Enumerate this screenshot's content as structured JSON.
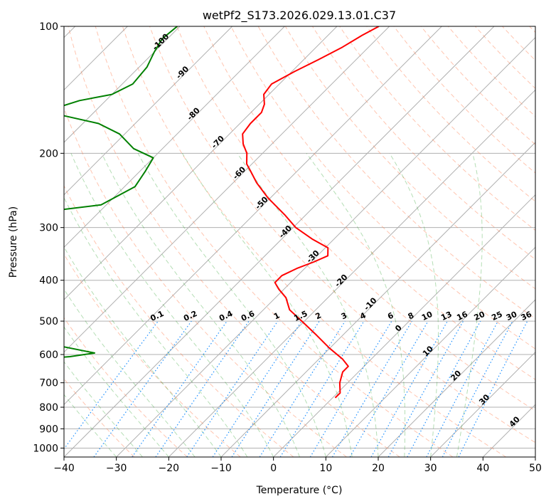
{
  "chart_data": {
    "type": "line",
    "title": "wetPf2_S173.2026.029.13.01.C37",
    "xlabel": "Temperature (°C)",
    "ylabel": "Pressure (hPa)",
    "xlim": [
      -40,
      50
    ],
    "ylim": [
      1050,
      100
    ],
    "y_scale": "log",
    "grid": true,
    "x_ticks": [
      -40,
      -30,
      -20,
      -10,
      0,
      10,
      20,
      30,
      40,
      50
    ],
    "y_ticks": [
      100,
      200,
      300,
      400,
      500,
      600,
      700,
      800,
      900,
      1000
    ],
    "colors": {
      "temperature": "#ff0000",
      "dewpoint": "#008000",
      "dry_adiabat": "#d2b48c",
      "moist_adiabat": "#2ca02c",
      "isotherm_annot": "#1f77b4",
      "mixing_ratio": "#1e90ff",
      "dry_annot": "#d62728",
      "zero_annot": "#808080"
    },
    "series": [
      {
        "role": "temperature",
        "points": [
          {
            "p": 100,
            "t": -62.0
          },
          {
            "p": 105,
            "t": -63.5
          },
          {
            "p": 112,
            "t": -65.0
          },
          {
            "p": 120,
            "t": -67.2
          },
          {
            "p": 128,
            "t": -69.5
          },
          {
            "p": 137,
            "t": -71.5
          },
          {
            "p": 145,
            "t": -71.0
          },
          {
            "p": 153,
            "t": -69.0
          },
          {
            "p": 160,
            "t": -68.0
          },
          {
            "p": 170,
            "t": -68.0
          },
          {
            "p": 180,
            "t": -67.5
          },
          {
            "p": 190,
            "t": -65.5
          },
          {
            "p": 200,
            "t": -63.0
          },
          {
            "p": 212,
            "t": -61.0
          },
          {
            "p": 220,
            "t": -59.0
          },
          {
            "p": 235,
            "t": -55.5
          },
          {
            "p": 255,
            "t": -50.5
          },
          {
            "p": 280,
            "t": -44.0
          },
          {
            "p": 300,
            "t": -39.5
          },
          {
            "p": 320,
            "t": -34.0
          },
          {
            "p": 335,
            "t": -29.5
          },
          {
            "p": 350,
            "t": -28.0
          },
          {
            "p": 362,
            "t": -29.5
          },
          {
            "p": 375,
            "t": -31.5
          },
          {
            "p": 390,
            "t": -33.0
          },
          {
            "p": 405,
            "t": -33.0
          },
          {
            "p": 420,
            "t": -31.0
          },
          {
            "p": 440,
            "t": -28.0
          },
          {
            "p": 470,
            "t": -25.0
          },
          {
            "p": 500,
            "t": -20.5
          },
          {
            "p": 540,
            "t": -15.0
          },
          {
            "p": 580,
            "t": -10.0
          },
          {
            "p": 615,
            "t": -5.5
          },
          {
            "p": 640,
            "t": -3.0
          },
          {
            "p": 660,
            "t": -3.0
          },
          {
            "p": 700,
            "t": -1.5
          },
          {
            "p": 740,
            "t": 0.5
          },
          {
            "p": 760,
            "t": 0.5
          }
        ]
      },
      {
        "role": "dewpoint",
        "points": [
          {
            "p": 100,
            "t": -100.5
          },
          {
            "p": 107,
            "t": -101.0
          },
          {
            "p": 115,
            "t": -100.0
          },
          {
            "p": 125,
            "t": -98.5
          },
          {
            "p": 137,
            "t": -98.0
          },
          {
            "p": 145,
            "t": -100.0
          },
          {
            "p": 150,
            "t": -105.0
          },
          {
            "p": 157,
            "t": -108.5
          },
          {
            "p": 163,
            "t": -105.0
          },
          {
            "p": 170,
            "t": -97.0
          },
          {
            "p": 180,
            "t": -91.0
          },
          {
            "p": 195,
            "t": -85.5
          },
          {
            "p": 205,
            "t": -80.0
          },
          {
            "p": 220,
            "t": -79.0
          },
          {
            "p": 240,
            "t": -78.0
          },
          {
            "p": 265,
            "t": -81.0
          },
          {
            "p": 278,
            "t": -93.0
          },
          {
            "p": 282,
            "t": -108.0
          },
          {
            "p": 300,
            "t": -109.0
          },
          {
            "p": 320,
            "t": -111.0
          },
          {
            "p": 345,
            "t": -112.5
          },
          {
            "p": 365,
            "t": -113.5
          },
          {
            "p": 375,
            "t": -114.0
          },
          {
            "p": 380,
            "t": -106.0
          },
          {
            "p": 385,
            "t": -101.0
          },
          {
            "p": 390,
            "t": -104.0
          },
          {
            "p": 395,
            "t": -112.0
          },
          {
            "p": 405,
            "t": -114.0
          },
          {
            "p": 430,
            "t": -114.5
          },
          {
            "p": 440,
            "t": -90.0
          },
          {
            "p": 455,
            "t": -70.5
          },
          {
            "p": 470,
            "t": -69.5
          },
          {
            "p": 485,
            "t": -72.0
          },
          {
            "p": 500,
            "t": -75.0
          },
          {
            "p": 515,
            "t": -76.0
          },
          {
            "p": 540,
            "t": -70.0
          },
          {
            "p": 570,
            "t": -63.0
          },
          {
            "p": 595,
            "t": -54.0
          },
          {
            "p": 607,
            "t": -58.0
          },
          {
            "p": 625,
            "t": -72.0
          },
          {
            "p": 632,
            "t": -110.0
          },
          {
            "p": 650,
            "t": -117.0
          },
          {
            "p": 660,
            "t": -108.0
          },
          {
            "p": 672,
            "t": -104.0
          },
          {
            "p": 678,
            "t": -109.0
          },
          {
            "p": 690,
            "t": -104.0
          },
          {
            "p": 700,
            "t": -96.0
          },
          {
            "p": 710,
            "t": -104.0
          },
          {
            "p": 720,
            "t": -116.0
          }
        ]
      }
    ],
    "dry_adiabats_theta_c": [
      -30,
      -20,
      -10,
      0,
      10,
      20,
      30,
      40,
      50,
      60,
      70,
      80,
      90,
      100,
      110,
      120,
      130,
      140,
      150,
      160,
      170,
      180,
      190,
      200
    ],
    "moist_adiabats_t_c": [
      -30,
      -25,
      -20,
      -15,
      -10,
      -5,
      0,
      5,
      10,
      15,
      20,
      25,
      30,
      35
    ],
    "mixing_ratios_gkg": [
      0.1,
      0.2,
      0.4,
      0.6,
      1,
      1.5,
      2,
      3,
      4,
      6,
      8,
      10,
      13,
      16,
      20,
      25,
      30,
      36
    ],
    "mixing_ratio_labels": [
      "0.1",
      "0.2",
      "0.4",
      "0.6",
      "1",
      "1.5",
      "2",
      "3",
      "4",
      "6",
      "8",
      "10",
      "13",
      "16",
      "20",
      "25",
      "30",
      "36"
    ],
    "isotherm_labels": [
      {
        "text": "-100",
        "t": -100,
        "p": 110
      },
      {
        "text": "-90",
        "t": -90,
        "p": 130
      },
      {
        "text": "-80",
        "t": -80,
        "p": 163
      },
      {
        "text": "-70",
        "t": -70,
        "p": 190
      },
      {
        "text": "-60",
        "t": -60,
        "p": 225
      },
      {
        "text": "-50",
        "t": -50,
        "p": 265
      },
      {
        "text": "-40",
        "t": -40,
        "p": 310
      },
      {
        "text": "-30",
        "t": -30,
        "p": 355
      },
      {
        "text": "-20",
        "t": -20,
        "p": 405
      },
      {
        "text": "-10",
        "t": -10,
        "p": 460
      }
    ],
    "temperature_labels": [
      {
        "text": "0",
        "t": 0,
        "p": 525,
        "color": "#808080"
      },
      {
        "text": "10",
        "t": 10,
        "p": 595,
        "color": "#d62728"
      },
      {
        "text": "20",
        "t": 20,
        "p": 680,
        "color": "#d62728"
      },
      {
        "text": "30",
        "t": 30,
        "p": 775,
        "color": "#d62728"
      },
      {
        "text": "40",
        "t": 40,
        "p": 875,
        "color": "#d62728"
      }
    ]
  }
}
